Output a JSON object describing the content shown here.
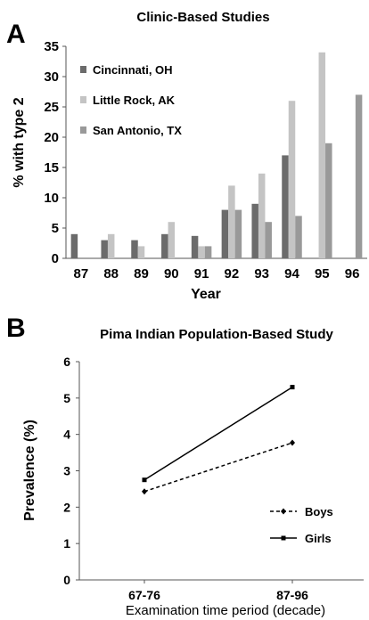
{
  "chart_data": [
    {
      "type": "bar",
      "panel_label": "A",
      "title": "Clinic-Based Studies",
      "xlabel": "Year",
      "ylabel": "% with type 2",
      "ylim": [
        0,
        35
      ],
      "yticks": [
        0,
        5,
        10,
        15,
        20,
        25,
        30,
        35
      ],
      "grid": false,
      "legend_position": "top-left",
      "categories": [
        "87",
        "88",
        "89",
        "90",
        "91",
        "92",
        "93",
        "94",
        "95",
        "96"
      ],
      "series": [
        {
          "name": "Cincinnati, OH",
          "color": "#6b6b6b",
          "values": [
            4,
            3,
            3,
            4,
            3.7,
            8,
            9,
            17,
            null,
            null
          ]
        },
        {
          "name": "Little Rock, AK",
          "color": "#c4c4c4",
          "values": [
            null,
            4,
            2,
            6,
            2,
            12,
            14,
            26,
            34,
            null
          ]
        },
        {
          "name": "San Antonio, TX",
          "color": "#999999",
          "values": [
            null,
            null,
            null,
            null,
            2,
            8,
            6,
            7,
            19,
            27
          ]
        }
      ]
    },
    {
      "type": "line",
      "panel_label": "B",
      "title": "Pima Indian Population-Based Study",
      "xlabel": "Examination time period (decade)",
      "ylabel": "Prevalence  (%)",
      "ylim": [
        0,
        6
      ],
      "yticks": [
        0,
        1,
        2,
        3,
        4,
        5,
        6
      ],
      "grid": false,
      "legend_position": "bottom-right",
      "categories": [
        "67-76",
        "87-96"
      ],
      "series": [
        {
          "name": "Boys",
          "color": "#000000",
          "line_style": "dashed",
          "marker": "diamond",
          "values": [
            2.43,
            3.77
          ]
        },
        {
          "name": "Girls",
          "color": "#000000",
          "line_style": "solid",
          "marker": "square",
          "values": [
            2.75,
            5.3
          ]
        }
      ]
    }
  ]
}
